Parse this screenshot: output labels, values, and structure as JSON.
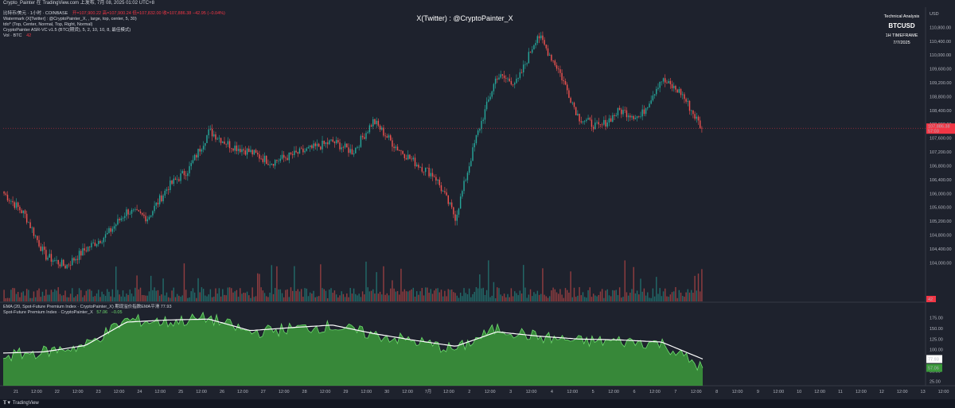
{
  "header": {
    "top_title": "Crypto_Painter 在 TradingView.com 上发布, 7月 08, 2025 01:02 UTC+8"
  },
  "legend": {
    "main_symbol": "比特币/美元 · 1小时 · COINBASE",
    "ohlc": "开=107,900.22  高=107,900.24  低=107,832.00  收=107,886.38  −42.95 (−0.04%)",
    "watermark_line": "Watermark (X[Twitter] : @CryptoPainter_X, , large, top, center, 5, 30)",
    "ind_line": "tdo* (Top, Center, Normal, Top, Right, Normal)",
    "asr_line": "CryptoPainter ASR-VC v1.5 (BTC(期货), 5, 2, 10, 10, 8, 最佳模式)",
    "vol_line": "Vol · BTC",
    "vol_value": "42"
  },
  "watermark": {
    "center": "X(Twitter) : @CryptoPainter_X",
    "right_title": "Technical Analysis",
    "right_symbol": "BTCUSD",
    "right_tf": "1H TIMEFRAME",
    "right_date": "7/7/2025"
  },
  "lower_legend": {
    "ema_line": "EMA (20, Spot-Future Premium Index · CryptoPainter_X) 期现溢价指数EMA平滑 77.93",
    "spfi_line": "Spot-Future Premium Index · CryptoPainter_X",
    "spfi_value": "57.06",
    "spfi_change": "−0.05"
  },
  "footer": {
    "brand": "TradingView"
  },
  "colors": {
    "up": "#26a69a",
    "down": "#ef5350",
    "bg": "#1e222d",
    "premium_fill": "#3c9a3c",
    "premium_line": "#6fdc6f",
    "ema_line": "#ffffff",
    "price_tag": "#f23645",
    "currency_tag": "#131722"
  },
  "price_axis": {
    "currency": "USD",
    "ticks": [
      "110,800.00",
      "110,400.00",
      "110,000.00",
      "109,600.00",
      "109,200.00",
      "108,800.00",
      "108,400.00",
      "108,000.00",
      "107,600.00",
      "107,200.00",
      "106,800.00",
      "106,400.00",
      "106,000.00",
      "105,600.00",
      "105,200.00",
      "104,800.00",
      "104,400.00",
      "104,000.00"
    ],
    "last_price_label": "107,886.38",
    "countdown": "57:03"
  },
  "premium_axis": {
    "ticks": [
      "175.00",
      "150.00",
      "125.00",
      "100.00",
      "75.00",
      "50.00",
      "25.00"
    ],
    "ema_label": "77.93",
    "value_label": "57.06"
  },
  "time_axis": {
    "labels": [
      "21",
      "12:00",
      "22",
      "12:00",
      "23",
      "12:00",
      "24",
      "12:00",
      "25",
      "12:00",
      "26",
      "12:00",
      "27",
      "12:00",
      "28",
      "12:00",
      "29",
      "12:00",
      "30",
      "12:00",
      "7月",
      "12:00",
      "2",
      "12:00",
      "3",
      "12:00",
      "4",
      "12:00",
      "5",
      "12:00",
      "6",
      "12:00",
      "7",
      "12:00",
      "8",
      "12:00",
      "9",
      "12:00",
      "10",
      "12:00",
      "11",
      "12:00",
      "12",
      "12:00",
      "13",
      "12:00"
    ]
  },
  "chart_data": [
    {
      "type": "candlestick",
      "symbol": "BTCUSD",
      "timeframe": "1H",
      "x_start": "21",
      "x_end": "8",
      "ylim": [
        103800,
        111200
      ],
      "ohlc_hint_path": [
        [
          "21",
          106000
        ],
        [
          "21 12:00",
          105400
        ],
        [
          "22",
          104200
        ],
        [
          "22 12:00",
          103900
        ],
        [
          "23",
          104400
        ],
        [
          "23 12:00",
          104800
        ],
        [
          "24",
          105500
        ],
        [
          "24 12:00",
          105300
        ],
        [
          "25",
          106200
        ],
        [
          "25 12:00",
          106700
        ],
        [
          "26",
          107800
        ],
        [
          "26 12:00",
          107400
        ],
        [
          "27",
          107200
        ],
        [
          "27 12:00",
          106900
        ],
        [
          "28",
          107100
        ],
        [
          "28 12:00",
          107300
        ],
        [
          "29",
          107500
        ],
        [
          "29 12:00",
          107200
        ],
        [
          "30",
          108100
        ],
        [
          "30 12:00",
          107400
        ],
        [
          "7月",
          106900
        ],
        [
          "7月 12:00",
          106500
        ],
        [
          "2",
          105300
        ],
        [
          "2 12:00",
          107600
        ],
        [
          "3",
          109400
        ],
        [
          "3 12:00",
          109200
        ],
        [
          "4",
          110600
        ],
        [
          "4 12:00",
          109600
        ],
        [
          "5",
          108200
        ],
        [
          "5 12:00",
          107900
        ],
        [
          "6",
          108400
        ],
        [
          "6 12:00",
          108200
        ],
        [
          "7",
          109300
        ],
        [
          "7 12:00",
          108900
        ],
        [
          "8",
          107886.38
        ]
      ],
      "last": 107886.38
    },
    {
      "type": "area",
      "name": "Spot-Future Premium Index",
      "ylim": [
        15,
        195
      ],
      "series": [
        {
          "name": "Spot-Future Premium Index",
          "x": [
            "21",
            "22",
            "23",
            "24",
            "25",
            "26",
            "27",
            "28",
            "29",
            "30",
            "7月",
            "2",
            "3",
            "4",
            "5",
            "6",
            "7",
            "8"
          ],
          "values": [
            85,
            95,
            110,
            170,
            165,
            175,
            140,
            150,
            155,
            135,
            120,
            100,
            150,
            130,
            120,
            120,
            115,
            57.06
          ]
        },
        {
          "name": "EMA (20, Spot-Future Premium Index · CryptoPainter_X) 期现溢价指数EMA平滑",
          "x": [
            "21",
            "22",
            "23",
            "24",
            "25",
            "26",
            "27",
            "28",
            "29",
            "30",
            "7月",
            "2",
            "3",
            "4",
            "5",
            "6",
            "7",
            "8"
          ],
          "values": [
            92,
            95,
            110,
            165,
            170,
            172,
            145,
            152,
            158,
            138,
            122,
            108,
            142,
            132,
            125,
            123,
            118,
            77.93
          ]
        }
      ]
    }
  ]
}
